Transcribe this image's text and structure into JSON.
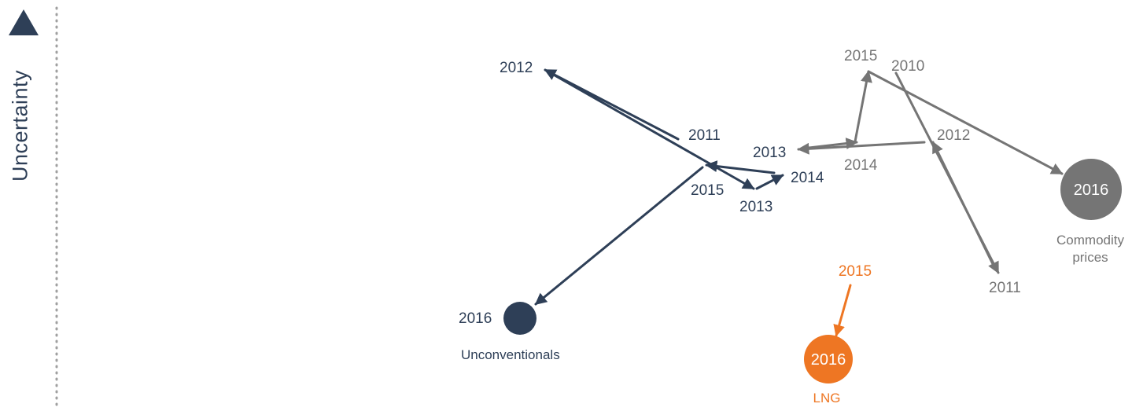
{
  "axis": {
    "label": "Uncertainty"
  },
  "colors": {
    "unconventionals": "#2e3f57",
    "commodity": "#757575",
    "lng": "#ee7623",
    "axis_dots": "#a0a0a0"
  },
  "series": [
    {
      "key": "unconventionals",
      "name": "Unconventionals",
      "points": [
        {
          "year": "2011"
        },
        {
          "year": "2012"
        },
        {
          "year": "2013"
        },
        {
          "year": "2014"
        },
        {
          "year": "2015"
        },
        {
          "year": "2016"
        }
      ]
    },
    {
      "key": "commodity",
      "name": "Commodity prices",
      "points": [
        {
          "year": "2010"
        },
        {
          "year": "2011"
        },
        {
          "year": "2012"
        },
        {
          "year": "2013"
        },
        {
          "year": "2014"
        },
        {
          "year": "2015"
        },
        {
          "year": "2016"
        }
      ]
    },
    {
      "key": "lng",
      "name": "LNG",
      "points": [
        {
          "year": "2015"
        },
        {
          "year": "2016"
        }
      ]
    }
  ]
}
